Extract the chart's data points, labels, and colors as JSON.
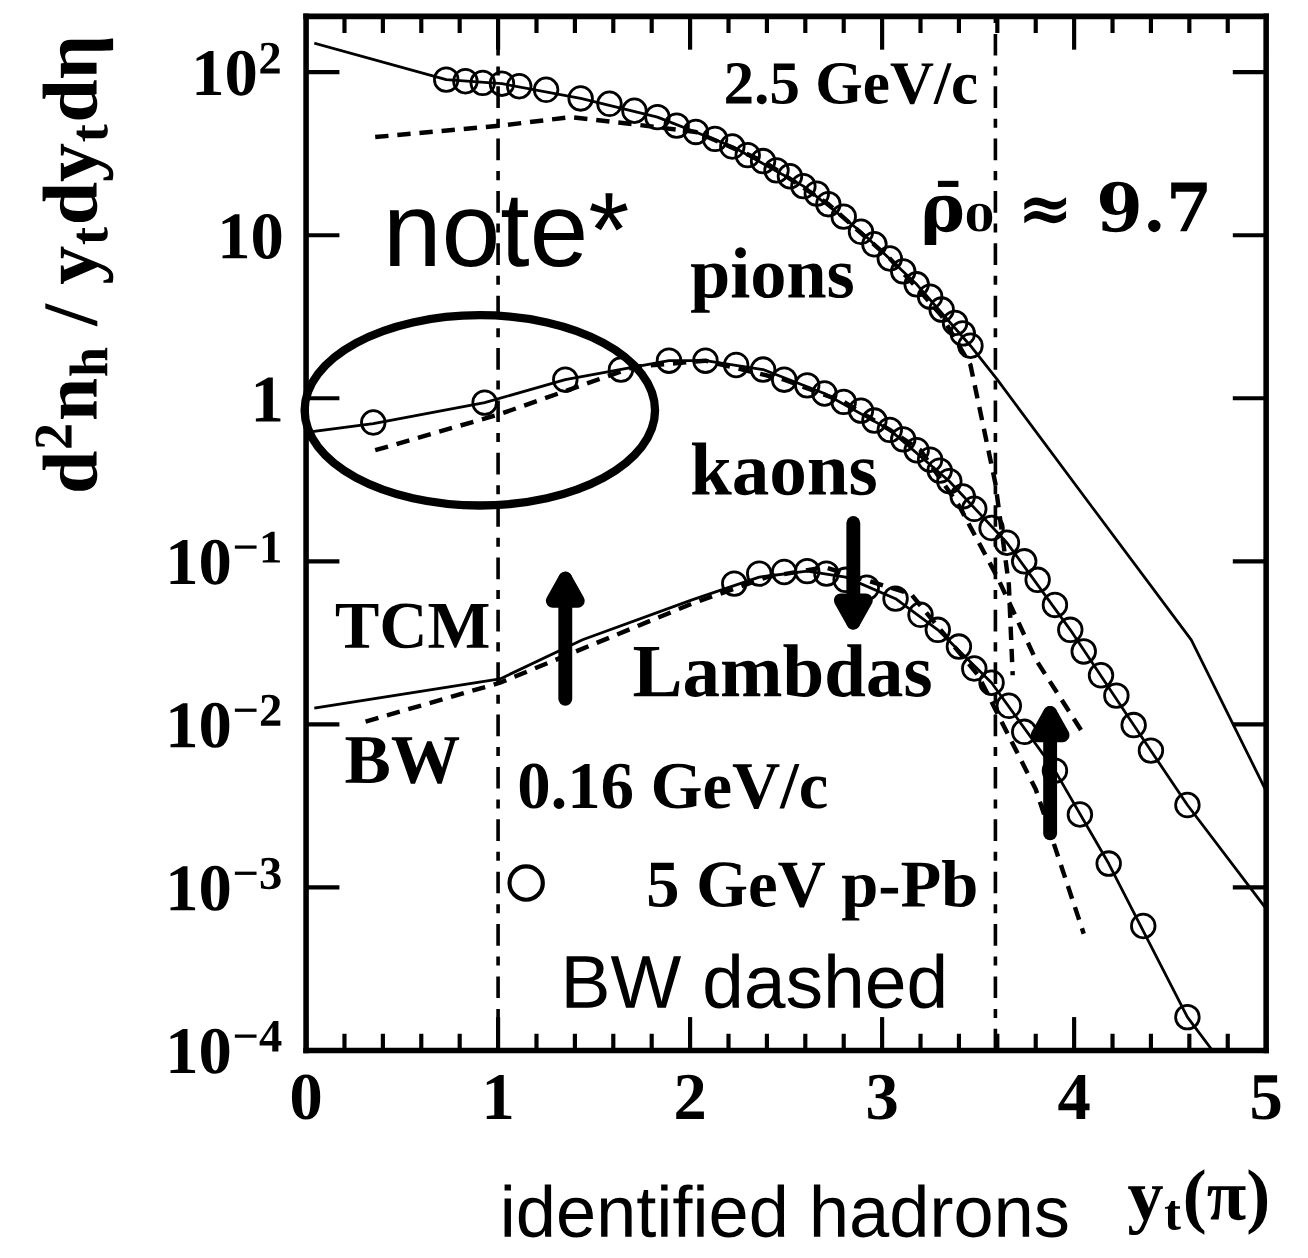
{
  "chart_data": {
    "type": "scatter",
    "xlabel": "y$_{t}$(π)",
    "ylabel": "d$^{2}$n$_{h}$ / y$_{t}$dy$_{t}$dη",
    "log": "y",
    "xlim": [
      0,
      5
    ],
    "ylim": [
      0.0001,
      220
    ],
    "xticks": [
      0,
      1,
      2,
      3,
      4,
      5
    ],
    "yticks": [
      {
        "value": 0.0001,
        "label": "10$^{−4}$"
      },
      {
        "value": 0.001,
        "label": "10$^{−3}$"
      },
      {
        "value": 0.01,
        "label": "10$^{−2}$"
      },
      {
        "value": 0.1,
        "label": "10$^{−1}$"
      },
      {
        "value": 1,
        "label": "1"
      },
      {
        "value": 10,
        "label": "10"
      },
      {
        "value": 100,
        "label": "10$^{2}$"
      }
    ],
    "grid": false,
    "legend": "bottom",
    "ref_lines": [
      {
        "axis": "x",
        "value": 1,
        "line_style": "dashdot",
        "color": "#000000"
      },
      {
        "axis": "x",
        "value": 3.59,
        "line_style": "dashdot",
        "color": "#000000"
      }
    ],
    "annotations": [
      "2.5 GeV/c",
      "ρ̄₀ ≈ 9.7",
      "note*",
      "pions",
      "kaons",
      "TCM",
      "Lambdas",
      "BW",
      "0.16 GeV/c",
      "BW dashed",
      "identified hadrons"
    ],
    "series": [
      {
        "name": "5 GeV p-Pb",
        "marker": "circle",
        "color": "#000000",
        "x": [
          0.73,
          0.83,
          0.92,
          1.02,
          1.11,
          1.25,
          1.43,
          1.58,
          1.71,
          1.83,
          1.93,
          2.03,
          2.13,
          2.22,
          2.3,
          2.38,
          2.45,
          2.52,
          2.59,
          2.66,
          2.72,
          2.8,
          2.89,
          2.96,
          3.04,
          3.11,
          3.18,
          3.25,
          3.31,
          3.38,
          3.42,
          3.46
        ],
        "values": [
          90,
          88,
          86,
          85,
          82,
          78,
          69,
          64,
          58,
          53,
          47,
          43,
          39,
          35,
          31,
          28.5,
          25,
          23,
          20,
          18,
          15.5,
          13,
          10.5,
          8.8,
          7.2,
          6.0,
          5.0,
          4.2,
          3.5,
          2.9,
          2.5,
          2.1
        ]
      },
      {
        "type": "line",
        "line_style": "solid",
        "color": "#000000",
        "x": [
          0.05,
          0.73,
          1.02,
          1.43,
          1.83,
          2.22,
          2.59,
          2.89,
          3.18,
          3.46,
          3.6,
          4.1,
          4.61,
          5.0
        ],
        "values": [
          150,
          90,
          85,
          69,
          53,
          35,
          20,
          10.5,
          5.0,
          2.1,
          1.3,
          0.21,
          0.033,
          0.0039
        ]
      },
      {
        "type": "line",
        "line_style": "dashed",
        "color": "#000000",
        "x": [
          0.36,
          1.01,
          1.38,
          1.7,
          2.03,
          2.38,
          2.72,
          3.04,
          3.2,
          3.31,
          3.46,
          3.59,
          3.66,
          3.68
        ],
        "values": [
          40,
          47,
          53,
          48,
          43,
          28.5,
          15.5,
          7.2,
          4.5,
          3.2,
          1.6,
          0.3,
          0.072,
          0.02
        ]
      },
      {
        "marker": "circle",
        "color": "#000000",
        "x": [
          0.35,
          0.93,
          1.35,
          1.64,
          1.89,
          2.08,
          2.24,
          2.38,
          2.49,
          2.61,
          2.7,
          2.8,
          2.89,
          2.96,
          3.04,
          3.11,
          3.18,
          3.25,
          3.3,
          3.35,
          3.42,
          3.48,
          3.57,
          3.65,
          3.74,
          3.81,
          3.9,
          3.98,
          4.05,
          4.14,
          4.22,
          4.31,
          4.4,
          4.59
        ],
        "values": [
          0.71,
          0.94,
          1.3,
          1.5,
          1.7,
          1.7,
          1.6,
          1.5,
          1.3,
          1.2,
          1.07,
          0.95,
          0.84,
          0.73,
          0.64,
          0.56,
          0.48,
          0.42,
          0.36,
          0.31,
          0.25,
          0.21,
          0.16,
          0.13,
          0.1,
          0.077,
          0.054,
          0.038,
          0.028,
          0.02,
          0.015,
          0.0099,
          0.0069,
          0.0032
        ]
      },
      {
        "type": "line",
        "line_style": "solid",
        "color": "#000000",
        "x": [
          0.01,
          0.35,
          0.93,
          1.35,
          1.89,
          2.08,
          2.38,
          2.7,
          3.04,
          3.35,
          3.65,
          3.98,
          4.31,
          4.59,
          5.0
        ],
        "values": [
          0.62,
          0.7,
          0.94,
          1.3,
          1.7,
          1.7,
          1.5,
          1.07,
          0.64,
          0.31,
          0.13,
          0.038,
          0.0099,
          0.0032,
          0.00074
        ]
      },
      {
        "type": "line",
        "line_style": "dashed",
        "color": "#000000",
        "x": [
          0.36,
          1.01,
          1.71,
          2.08,
          2.49,
          2.8,
          3.04,
          3.2,
          3.4,
          3.6,
          3.8,
          4.05
        ],
        "values": [
          0.48,
          0.8,
          1.56,
          1.7,
          1.3,
          0.95,
          0.64,
          0.48,
          0.22,
          0.08,
          0.025,
          0.0087
        ]
      },
      {
        "marker": "circle",
        "color": "#000000",
        "x": [
          2.23,
          2.36,
          2.49,
          2.61,
          2.71,
          2.81,
          2.92,
          3.07,
          3.2,
          3.29,
          3.4,
          3.48,
          3.57,
          3.66,
          3.74,
          3.9,
          4.03,
          4.18,
          4.36,
          4.59
        ],
        "values": [
          0.073,
          0.084,
          0.086,
          0.087,
          0.084,
          0.077,
          0.069,
          0.059,
          0.047,
          0.038,
          0.03,
          0.022,
          0.018,
          0.013,
          0.009,
          0.0052,
          0.0028,
          0.0014,
          0.00058,
          0.00016
        ]
      },
      {
        "type": "line",
        "line_style": "solid",
        "color": "#000000",
        "x": [
          0.05,
          1.01,
          1.44,
          2.01,
          2.36,
          2.61,
          2.81,
          3.07,
          3.29,
          3.57,
          3.9,
          4.18,
          4.59,
          4.72
        ],
        "values": [
          0.0126,
          0.019,
          0.033,
          0.058,
          0.08,
          0.087,
          0.08,
          0.059,
          0.038,
          0.018,
          0.0052,
          0.0014,
          0.00016,
          0.0001
        ]
      },
      {
        "type": "line",
        "line_style": "dashed",
        "color": "#000000",
        "x": [
          0.31,
          1.01,
          2.01,
          2.4,
          2.7,
          3.15,
          3.5,
          3.8,
          4.05
        ],
        "values": [
          0.0104,
          0.018,
          0.055,
          0.08,
          0.092,
          0.063,
          0.02,
          0.004,
          0.00052
        ]
      }
    ]
  }
}
